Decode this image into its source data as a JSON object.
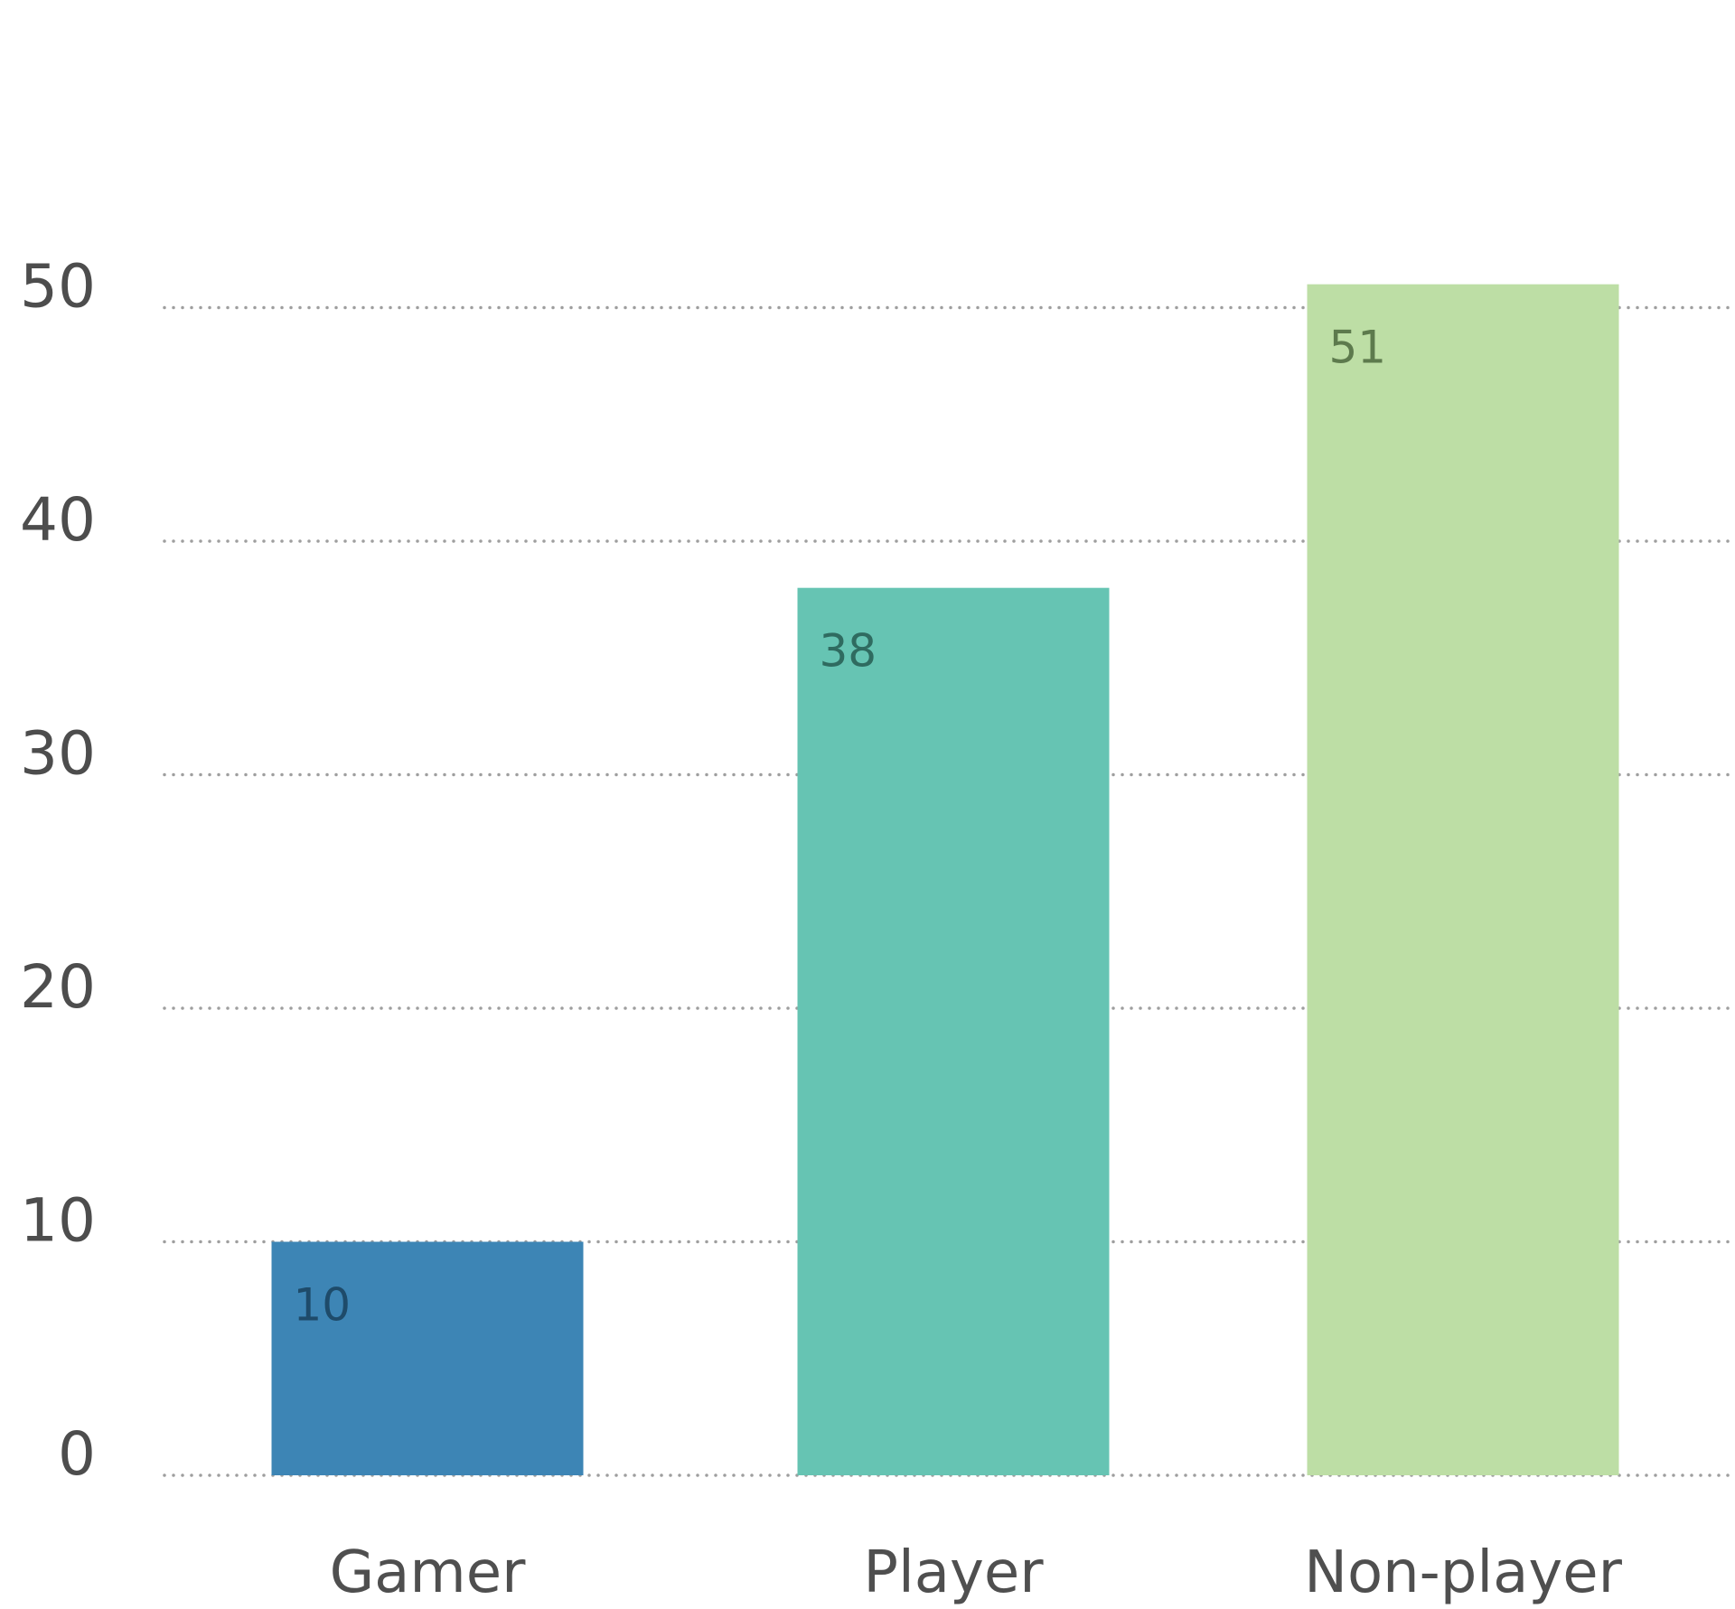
{
  "chart_data": {
    "type": "bar",
    "categories": [
      "Gamer",
      "Player",
      "Non-player"
    ],
    "values": [
      10,
      38,
      51
    ],
    "data_labels": [
      "10",
      "38",
      "51"
    ],
    "y_ticks": [
      "0",
      "10",
      "20",
      "30",
      "40",
      "50"
    ],
    "ylim": [
      0,
      60
    ],
    "grid": "horizontal dotted",
    "colors": [
      "#3d85b5",
      "#66c4b3",
      "#bdde a5"
    ],
    "label_colors": [
      "#1e4b6a",
      "#2f6b60",
      "#5d7a4d"
    ],
    "grid_color": "#9e9e9e"
  }
}
